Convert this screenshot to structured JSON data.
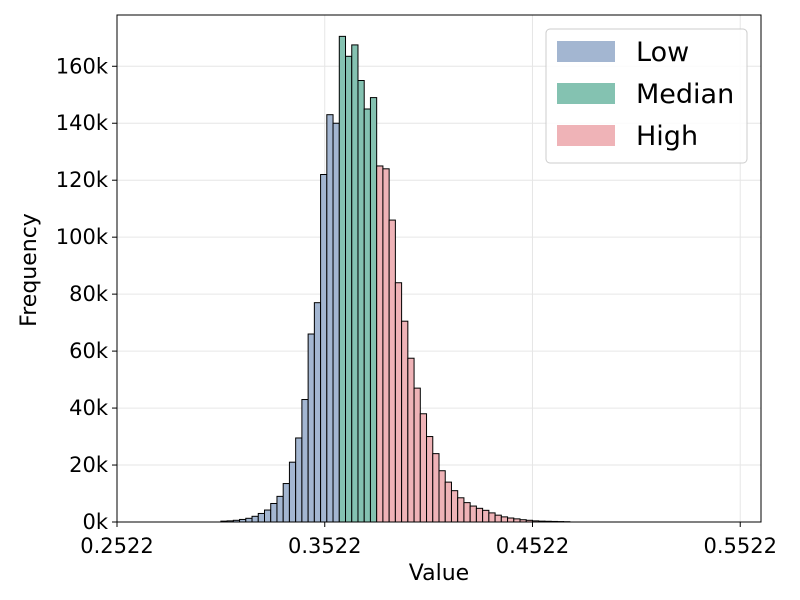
{
  "chart_data": {
    "type": "bar",
    "title": "",
    "xlabel": "Value",
    "ylabel": "Frequency",
    "xlim": [
      0.2522,
      0.5622
    ],
    "ylim": [
      0,
      178000
    ],
    "x_ticks": [
      {
        "value": 0.2522,
        "label": "0.2522"
      },
      {
        "value": 0.3522,
        "label": "0.3522"
      },
      {
        "value": 0.4522,
        "label": "0.4522"
      },
      {
        "value": 0.5522,
        "label": "0.5522"
      }
    ],
    "y_ticks": [
      {
        "value": 0,
        "label": "0k"
      },
      {
        "value": 20000,
        "label": "20k"
      },
      {
        "value": 40000,
        "label": "40k"
      },
      {
        "value": 60000,
        "label": "60k"
      },
      {
        "value": 80000,
        "label": "80k"
      },
      {
        "value": 100000,
        "label": "100k"
      },
      {
        "value": 120000,
        "label": "120k"
      },
      {
        "value": 140000,
        "label": "140k"
      },
      {
        "value": 160000,
        "label": "160k"
      }
    ],
    "grid": true,
    "legend_position": "top-right",
    "bin_start": 0.3022,
    "bin_width": 0.003,
    "series": [
      {
        "name": "Low",
        "color": "#a3b6d1",
        "values": [
          300,
          400,
          600,
          900,
          1300,
          2000,
          3000,
          4200,
          6500,
          9000,
          13500,
          21000,
          29500,
          43000,
          66000,
          77000,
          122000,
          143000,
          140000
        ]
      },
      {
        "name": "Median",
        "color": "#84c2b1",
        "values": [
          170500,
          163500,
          167500,
          155000,
          145000,
          149000
        ]
      },
      {
        "name": "High",
        "color": "#efb3b7",
        "values": [
          125000,
          124000,
          106000,
          84000,
          70500,
          57500,
          47000,
          38000,
          30000,
          24000,
          18000,
          14000,
          11000,
          8500,
          6800,
          5600,
          4800,
          4100,
          3200,
          2400,
          1800,
          1400,
          1100,
          800,
          600,
          400,
          300,
          250,
          200,
          150,
          100
        ]
      }
    ]
  }
}
